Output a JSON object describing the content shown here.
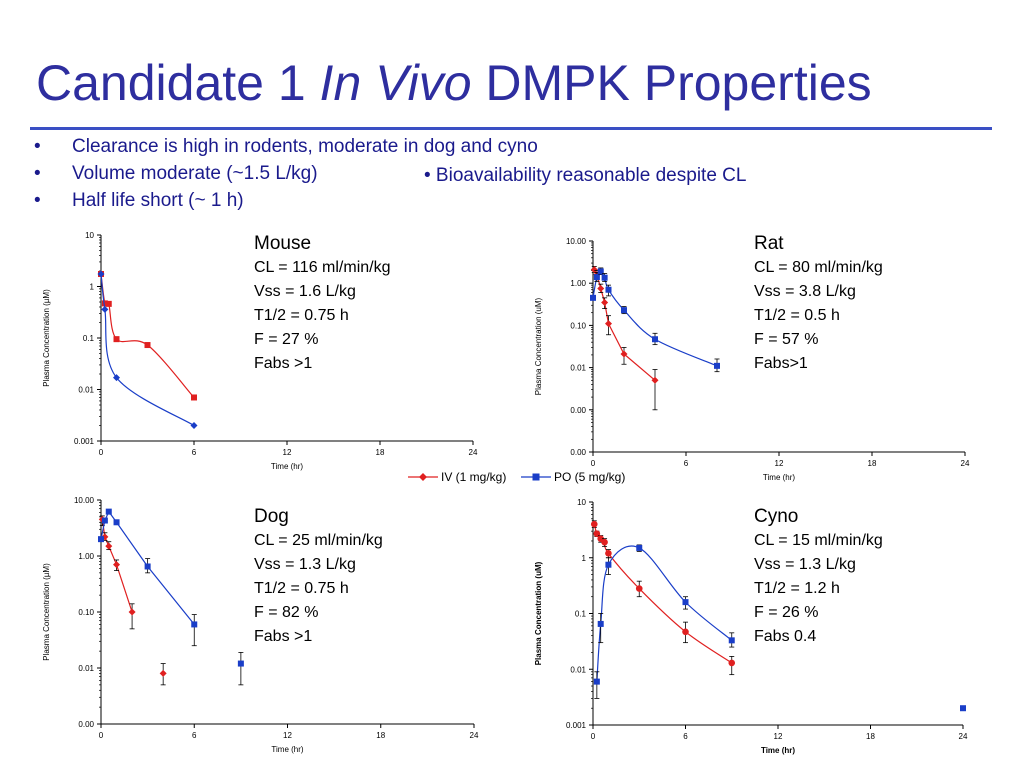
{
  "title": {
    "part1": "Candidate 1 ",
    "italic": "In Vivo",
    "part2": " DMPK Properties"
  },
  "bullets": [
    "Clearance is high in rodents, moderate in dog and cyno",
    "Volume moderate (~1.5 L/kg)",
    "Half life short (~ 1 h)"
  ],
  "bullet_symbol": "•",
  "bullet_right": "• Bioavailability reasonable despite CL",
  "legend": {
    "iv": "IV (1 mg/kg)",
    "po": "PO (5 mg/kg)"
  },
  "colors": {
    "iv": "#e02020",
    "po": "#1a3ec8",
    "title": "#2e2e9f",
    "rule": "#3a4fc4"
  },
  "panels": [
    {
      "species": "Mouse",
      "lines": [
        "CL = 116 ml/min/kg",
        "Vss = 1.6 L/kg",
        "T1/2 = 0.75 h",
        "F = 27 %",
        "Fabs >1"
      ]
    },
    {
      "species": "Rat",
      "lines": [
        "CL = 80 ml/min/kg",
        "Vss = 3.8 L/kg",
        "T1/2 = 0.5 h",
        "F = 57 %",
        "Fabs>1"
      ]
    },
    {
      "species": "Dog",
      "lines": [
        "CL = 25 ml/min/kg",
        "Vss = 1.3 L/kg",
        "T1/2 = 0.75 h",
        "F = 82 %",
        "Fabs >1"
      ]
    },
    {
      "species": "Cyno",
      "lines": [
        "CL = 15 ml/min/kg",
        "Vss = 1.3 L/kg",
        "T1/2 = 1.2 h",
        "F = 26 %",
        "Fabs 0.4"
      ]
    }
  ],
  "chart_data": [
    {
      "type": "scatter",
      "panel": "Mouse",
      "xlabel": "Time (hr)",
      "ylabel": "Plasma Concentration (µM)",
      "ylabel_bold": false,
      "xlim": [
        0,
        24
      ],
      "xticks": [
        "0",
        "6",
        "12",
        "18",
        "24"
      ],
      "yscale": "log",
      "ylim": [
        0.001,
        10
      ],
      "yticks": [
        {
          "v": 10,
          "l": "10"
        },
        {
          "v": 1,
          "l": "1"
        },
        {
          "v": 0.1,
          "l": "0.1"
        },
        {
          "v": 0.01,
          "l": "0.01"
        },
        {
          "v": 0.001,
          "l": "0.001"
        }
      ],
      "series": [
        {
          "key": "iv",
          "marker": "square",
          "connect": "curve",
          "points": [
            {
              "x": 0,
              "y": 1.75
            },
            {
              "x": 0.25,
              "y": 0.47
            },
            {
              "x": 0.5,
              "y": 0.46
            },
            {
              "x": 1,
              "y": 0.095
            },
            {
              "x": 3,
              "y": 0.073
            },
            {
              "x": 6,
              "y": 0.007
            }
          ]
        },
        {
          "key": "po",
          "marker": "diamond",
          "connect": "curve",
          "points": [
            {
              "x": 0,
              "y": 1.75
            },
            {
              "x": 0.25,
              "y": 0.36
            },
            {
              "x": 1,
              "y": 0.017
            },
            {
              "x": 6,
              "y": 0.002
            }
          ]
        }
      ]
    },
    {
      "type": "scatter",
      "panel": "Rat",
      "xlabel": "Time (hr)",
      "ylabel": "Plasma Concentration (uM)",
      "ylabel_bold": false,
      "xlim": [
        0,
        24
      ],
      "xticks": [
        "0",
        "6",
        "12",
        "18",
        "24"
      ],
      "yscale": "log",
      "ylim": [
        0.0001,
        10
      ],
      "yticks": [
        {
          "v": 10,
          "l": "10.00"
        },
        {
          "v": 1,
          "l": "1.00"
        },
        {
          "v": 0.1,
          "l": "0.10"
        },
        {
          "v": 0.01,
          "l": "0.01"
        },
        {
          "v": 0.001,
          "l": "0.00"
        },
        {
          "v": 0.0001,
          "l": "0.00"
        }
      ],
      "series": [
        {
          "key": "iv",
          "marker": "diamond",
          "connect": "line",
          "points": [
            {
              "x": 0.083,
              "y": 2.1,
              "err": [
                1.8,
                2.5
              ]
            },
            {
              "x": 0.25,
              "y": 1.6,
              "err": [
                1.3,
                2.0
              ]
            },
            {
              "x": 0.5,
              "y": 0.75,
              "err": [
                0.6,
                0.95
              ]
            },
            {
              "x": 0.75,
              "y": 0.35,
              "err": [
                0.25,
                0.45
              ]
            },
            {
              "x": 1,
              "y": 0.11,
              "err": [
                0.06,
                0.17
              ]
            },
            {
              "x": 2,
              "y": 0.021,
              "err": [
                0.012,
                0.03
              ]
            },
            {
              "x": 4,
              "y": 0.005,
              "err": [
                0.001,
                0.009
              ]
            }
          ]
        },
        {
          "key": "po",
          "marker": "square",
          "connect": "curve",
          "points": [
            {
              "x": 0,
              "y": 0.45
            },
            {
              "x": 0.25,
              "y": 1.4,
              "err": [
                1.1,
                1.8
              ]
            },
            {
              "x": 0.5,
              "y": 1.9,
              "err": [
                1.6,
                2.3
              ]
            },
            {
              "x": 0.75,
              "y": 1.35,
              "err": [
                1.1,
                1.7
              ]
            },
            {
              "x": 1,
              "y": 0.7,
              "err": [
                0.5,
                0.9
              ]
            },
            {
              "x": 2,
              "y": 0.23,
              "err": [
                0.19,
                0.28
              ]
            },
            {
              "x": 4,
              "y": 0.047,
              "err": [
                0.035,
                0.065
              ]
            },
            {
              "x": 8,
              "y": 0.011,
              "err": [
                0.008,
                0.016
              ]
            }
          ]
        }
      ]
    },
    {
      "type": "scatter",
      "panel": "Dog",
      "xlabel": "Time (hr)",
      "ylabel": "Plasma Concentration (µM)",
      "ylabel_bold": false,
      "xlim": [
        0,
        24
      ],
      "xticks": [
        "0",
        "6",
        "12",
        "18",
        "24"
      ],
      "yscale": "log",
      "ylim": [
        0.001,
        10
      ],
      "yticks": [
        {
          "v": 10,
          "l": "10.00"
        },
        {
          "v": 1,
          "l": "1.00"
        },
        {
          "v": 0.1,
          "l": "0.10"
        },
        {
          "v": 0.01,
          "l": "0.01"
        },
        {
          "v": 0.001,
          "l": "0.00"
        }
      ],
      "series": [
        {
          "key": "iv",
          "marker": "diamond",
          "connect": "line",
          "points": [
            {
              "x": 0.083,
              "y": 4.5,
              "err": [
                3.5,
                5.2
              ]
            },
            {
              "x": 0.25,
              "y": 2.2,
              "err": [
                1.9,
                2.6
              ]
            },
            {
              "x": 0.5,
              "y": 1.5,
              "err": [
                1.3,
                1.8
              ]
            },
            {
              "x": 1,
              "y": 0.7,
              "err": [
                0.55,
                0.85
              ]
            },
            {
              "x": 2,
              "y": 0.1,
              "err": [
                0.05,
                0.14
              ]
            },
            {
              "x": 4,
              "y": 0.008,
              "err": [
                0.005,
                0.012
              ],
              "isolated": true
            }
          ]
        },
        {
          "key": "po",
          "marker": "square",
          "connect": "line",
          "points": [
            {
              "x": 0,
              "y": 2.0
            },
            {
              "x": 0.25,
              "y": 4.3
            },
            {
              "x": 0.5,
              "y": 6.2
            },
            {
              "x": 1,
              "y": 4.0
            },
            {
              "x": 3,
              "y": 0.65,
              "err": [
                0.5,
                0.9
              ]
            },
            {
              "x": 6,
              "y": 0.06,
              "err": [
                0.025,
                0.09
              ]
            },
            {
              "x": 9,
              "y": 0.012,
              "err": [
                0.005,
                0.019
              ],
              "isolated": true
            }
          ]
        }
      ]
    },
    {
      "type": "scatter",
      "panel": "Cyno",
      "xlabel": "Time (hr)",
      "ylabel": "Plasma Concentration (uM)",
      "ylabel_bold": true,
      "xlim": [
        0,
        24
      ],
      "xticks": [
        "0",
        "6",
        "12",
        "18",
        "24"
      ],
      "yscale": "log",
      "ylim": [
        0.001,
        10
      ],
      "yticks": [
        {
          "v": 10,
          "l": "10"
        },
        {
          "v": 1,
          "l": "1"
        },
        {
          "v": 0.1,
          "l": "0.1"
        },
        {
          "v": 0.01,
          "l": "0.01"
        },
        {
          "v": 0.001,
          "l": "0.001"
        }
      ],
      "series": [
        {
          "key": "iv",
          "marker": "circle",
          "connect": "curve",
          "points": [
            {
              "x": 0.083,
              "y": 4.0,
              "err": [
                3.5,
                4.6
              ]
            },
            {
              "x": 0.25,
              "y": 2.7,
              "err": [
                2.4,
                3.0
              ]
            },
            {
              "x": 0.5,
              "y": 2.2,
              "err": [
                1.9,
                2.5
              ]
            },
            {
              "x": 0.75,
              "y": 1.9,
              "err": [
                1.6,
                2.2
              ]
            },
            {
              "x": 1,
              "y": 1.2,
              "err": [
                1.0,
                1.4
              ]
            },
            {
              "x": 3,
              "y": 0.28,
              "err": [
                0.2,
                0.38
              ]
            },
            {
              "x": 6,
              "y": 0.047,
              "err": [
                0.03,
                0.07
              ]
            },
            {
              "x": 9,
              "y": 0.013,
              "err": [
                0.008,
                0.017
              ]
            }
          ]
        },
        {
          "key": "po",
          "marker": "square",
          "connect": "curve",
          "points": [
            {
              "x": 0.25,
              "y": 0.006,
              "err": [
                0.003,
                0.009
              ]
            },
            {
              "x": 0.5,
              "y": 0.065,
              "err": [
                0.03,
                0.1
              ]
            },
            {
              "x": 1,
              "y": 0.75,
              "err": [
                0.5,
                1.0
              ]
            },
            {
              "x": 3,
              "y": 1.5,
              "err": [
                1.3,
                1.7
              ]
            },
            {
              "x": 6,
              "y": 0.16,
              "err": [
                0.12,
                0.2
              ]
            },
            {
              "x": 9,
              "y": 0.033,
              "err": [
                0.025,
                0.045
              ]
            },
            {
              "x": 24,
              "y": 0.002,
              "isolated": true
            }
          ]
        }
      ]
    }
  ]
}
